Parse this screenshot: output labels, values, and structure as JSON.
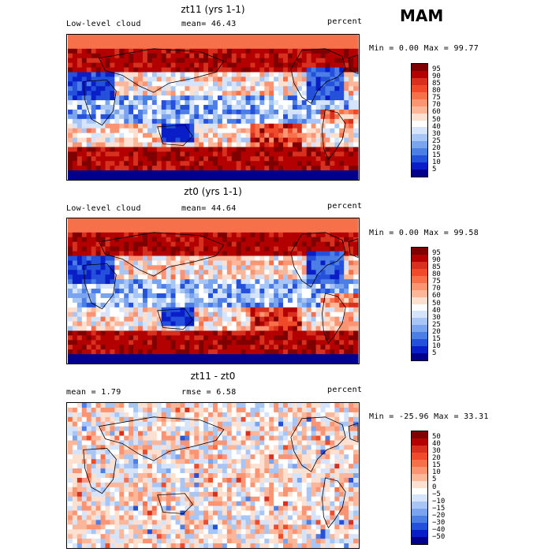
{
  "season": "MAM",
  "panels": [
    {
      "title": "zt11 (yrs 1-1)",
      "left_label": "Low-level cloud",
      "mid_label": "mean=  46.43",
      "units": "percent",
      "range": "Min =    0.00 Max =  99.77",
      "ticks": [
        "95",
        "90",
        "85",
        "80",
        "75",
        "70",
        "60",
        "50",
        "40",
        "30",
        "25",
        "20",
        "15",
        "10",
        "5"
      ],
      "colors": [
        "#7f0000",
        "#b30000",
        "#d7301f",
        "#ef4a2a",
        "#f6704a",
        "#fb9473",
        "#fcb69a",
        "#fde0cf",
        "#ffffff",
        "#d6e4fb",
        "#a8c6f5",
        "#7aa4ee",
        "#4c7ee6",
        "#2450dc",
        "#0a1ec8",
        "#00008c"
      ],
      "scale": "cloud"
    },
    {
      "title": "zt0 (yrs 1-1)",
      "left_label": "Low-level cloud",
      "mid_label": "mean=  44.64",
      "units": "percent",
      "range": "Min =    0.00 Max =  99.58",
      "ticks": [
        "95",
        "90",
        "85",
        "80",
        "75",
        "70",
        "60",
        "50",
        "40",
        "30",
        "25",
        "20",
        "15",
        "10",
        "5"
      ],
      "colors": [
        "#7f0000",
        "#b30000",
        "#d7301f",
        "#ef4a2a",
        "#f6704a",
        "#fb9473",
        "#fcb69a",
        "#fde0cf",
        "#ffffff",
        "#d6e4fb",
        "#a8c6f5",
        "#7aa4ee",
        "#4c7ee6",
        "#2450dc",
        "#0a1ec8",
        "#00008c"
      ],
      "scale": "cloud"
    },
    {
      "title": "zt11 - zt0",
      "left_label": "mean =    1.79",
      "mid_label": "rmse =   6.58",
      "units": "percent",
      "range": "Min = -25.96 Max =  33.31",
      "ticks": [
        "50",
        "40",
        "30",
        "20",
        "15",
        "10",
        "5",
        "0",
        "−5",
        "−10",
        "−15",
        "−20",
        "−30",
        "−40",
        "−50"
      ],
      "colors": [
        "#7f0000",
        "#b30000",
        "#d7301f",
        "#ef4a2a",
        "#f6704a",
        "#fb9473",
        "#fcb69a",
        "#fde0cf",
        "#ffffff",
        "#d6e4fb",
        "#a8c6f5",
        "#7aa4ee",
        "#4c7ee6",
        "#2450dc",
        "#0a1ec8",
        "#00008c"
      ],
      "scale": "diff"
    }
  ]
}
